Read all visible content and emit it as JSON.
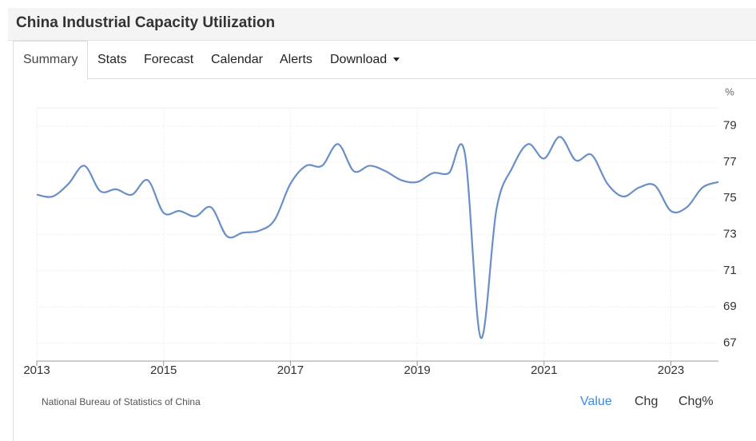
{
  "header": {
    "title": "China Industrial Capacity Utilization"
  },
  "tabs": [
    "Summary",
    "Stats",
    "Forecast",
    "Calendar",
    "Alerts",
    "Download"
  ],
  "chart_data": {
    "type": "line",
    "unit": "%",
    "x": [
      2013,
      2013.25,
      2013.5,
      2013.75,
      2014,
      2014.25,
      2014.5,
      2014.75,
      2015,
      2015.25,
      2015.5,
      2015.75,
      2016,
      2016.25,
      2016.5,
      2016.75,
      2017,
      2017.25,
      2017.5,
      2017.75,
      2018,
      2018.25,
      2018.5,
      2018.75,
      2019,
      2019.25,
      2019.5,
      2019.75,
      2020,
      2020.25,
      2020.5,
      2020.75,
      2021,
      2021.25,
      2021.5,
      2021.75,
      2022,
      2022.25,
      2022.5,
      2022.75,
      2023,
      2023.25,
      2023.5,
      2023.75
    ],
    "series": [
      {
        "name": "Capacity Utilization",
        "color": "#6a8fc7",
        "values": [
          75.2,
          75.1,
          75.8,
          76.8,
          75.4,
          75.5,
          75.2,
          76.0,
          74.2,
          74.3,
          74.0,
          74.5,
          72.9,
          73.1,
          73.2,
          73.8,
          75.8,
          76.8,
          76.8,
          78.0,
          76.5,
          76.8,
          76.5,
          76.0,
          75.9,
          76.4,
          76.4,
          77.5,
          67.3,
          74.4,
          76.7,
          78.0,
          77.2,
          78.4,
          77.1,
          77.4,
          75.8,
          75.1,
          75.6,
          75.7,
          74.3,
          74.5,
          75.6,
          75.9
        ]
      }
    ],
    "xlim": [
      2013,
      2023.75
    ],
    "xticks": [
      2013,
      2015,
      2017,
      2019,
      2021,
      2023
    ],
    "ylim": [
      66,
      80
    ],
    "yticks": [
      67,
      69,
      71,
      73,
      75,
      77,
      79
    ],
    "grid": true
  },
  "source": "National Bureau of Statistics of China",
  "views": [
    "Value",
    "Chg",
    "Chg%"
  ]
}
